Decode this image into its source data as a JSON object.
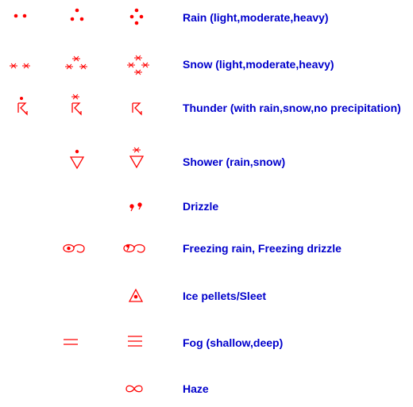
{
  "colors": {
    "symbol": "#ff0000",
    "label": "#0000cc",
    "background": "#ffffff"
  },
  "rows": [
    {
      "key": "rain",
      "label": "Rain (light,moderate,heavy)",
      "symbols": [
        "rain-light-icon",
        "rain-moderate-icon",
        "rain-heavy-icon"
      ]
    },
    {
      "key": "snow",
      "label": "Snow (light,moderate,heavy)",
      "symbols": [
        "snow-light-icon",
        "snow-moderate-icon",
        "snow-heavy-icon"
      ]
    },
    {
      "key": "thunder",
      "label": "Thunder (with rain,snow,no precipitation)",
      "symbols": [
        "thunder-rain-icon",
        "thunder-snow-icon",
        "thunder-no-precip-icon"
      ]
    },
    {
      "key": "shower",
      "label": "Shower (rain,snow)",
      "symbols": [
        "shower-rain-icon",
        "shower-snow-icon"
      ]
    },
    {
      "key": "drizzle",
      "label": "Drizzle",
      "symbols": [
        "drizzle-icon"
      ]
    },
    {
      "key": "freezing",
      "label": "Freezing rain, Freezing drizzle",
      "symbols": [
        "freezing-rain-icon",
        "freezing-drizzle-icon"
      ]
    },
    {
      "key": "ice",
      "label": "Ice pellets/Sleet",
      "symbols": [
        "ice-pellets-icon"
      ]
    },
    {
      "key": "fog",
      "label": "Fog (shallow,deep)",
      "symbols": [
        "fog-shallow-icon",
        "fog-deep-icon"
      ]
    },
    {
      "key": "haze",
      "label": "Haze",
      "symbols": [
        "haze-icon"
      ]
    }
  ]
}
